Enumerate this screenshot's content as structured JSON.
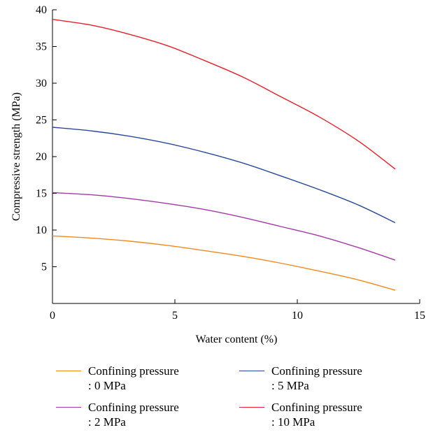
{
  "chart_data": {
    "type": "line",
    "title": "",
    "xlabel": "Water content (%)",
    "ylabel": "Compressive strength (MPa)",
    "xlim": [
      0,
      15
    ],
    "ylim": [
      0,
      40
    ],
    "xticks": [
      "0",
      "5",
      "10",
      "15"
    ],
    "yticks": [
      "5",
      "10",
      "15",
      "20",
      "25",
      "30",
      "35",
      "40"
    ],
    "grid": false,
    "legend_position": "bottom",
    "series": [
      {
        "name": "Confining pressure\n: 0 MPa",
        "color": "#f28a1e",
        "x": [
          0,
          1.6,
          3.1,
          4.7,
          6.2,
          7.8,
          9.3,
          10.9,
          12.5,
          14
        ],
        "y": [
          9.2,
          8.9,
          8.5,
          7.9,
          7.2,
          6.4,
          5.5,
          4.4,
          3.2,
          1.8
        ]
      },
      {
        "name": "Confining pressure\n: 2 MPa",
        "color": "#a43aa6",
        "x": [
          0,
          1.6,
          3.1,
          4.7,
          6.2,
          7.8,
          9.3,
          10.9,
          12.5,
          14
        ],
        "y": [
          15.1,
          14.8,
          14.3,
          13.6,
          12.8,
          11.7,
          10.5,
          9.2,
          7.6,
          5.9
        ]
      },
      {
        "name": "Confining pressure\n: 5 MPa",
        "color": "#2a4a9a",
        "x": [
          0,
          1.6,
          3.1,
          4.7,
          6.2,
          7.8,
          9.3,
          10.9,
          12.5,
          14
        ],
        "y": [
          24.0,
          23.5,
          22.8,
          21.8,
          20.6,
          19.1,
          17.4,
          15.5,
          13.4,
          11.0
        ]
      },
      {
        "name": "Confining pressure\n: 10 MPa",
        "color": "#e8202a",
        "x": [
          0,
          1.6,
          3.1,
          4.7,
          6.2,
          7.8,
          9.3,
          10.9,
          12.5,
          14
        ],
        "y": [
          38.7,
          37.9,
          36.7,
          35.1,
          33.1,
          30.8,
          28.2,
          25.4,
          22.1,
          18.3
        ]
      }
    ]
  }
}
